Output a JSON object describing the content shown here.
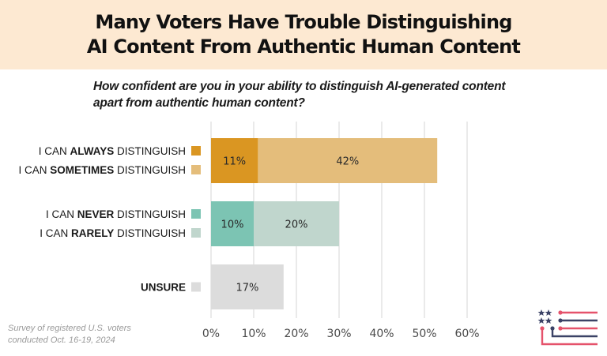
{
  "header": {
    "title_line1": "Many Voters Have Trouble Distinguishing",
    "title_line2": "AI Content From Authentic Human Content"
  },
  "question": {
    "line1": "How confident are you in your ability to distinguish AI-generated content",
    "line2": "apart from authentic human content?"
  },
  "footnote": {
    "line1": "Survey of registered U.S. voters",
    "line2": "conducted Oct. 16-19, 2024"
  },
  "logo": {
    "icon": "flag-stars-stripes-logo"
  },
  "chart_data": {
    "type": "bar",
    "orientation": "horizontal",
    "stacked": true,
    "title": "Many Voters Have Trouble Distinguishing AI Content From Authentic Human Content",
    "subtitle": "How confident are you in your ability to distinguish AI-generated content apart from authentic human content?",
    "xlabel": "",
    "ylabel": "",
    "xlim": [
      0,
      60
    ],
    "xticks": [
      0,
      10,
      20,
      30,
      40,
      50,
      60
    ],
    "xtick_labels": [
      "0%",
      "10%",
      "20%",
      "30%",
      "40%",
      "50%",
      "60%"
    ],
    "grid": true,
    "legend_placement": "left",
    "bars": [
      {
        "segments": [
          {
            "name": "I CAN ALWAYS DISTINGUISH",
            "prefix": "I CAN ",
            "bold": "ALWAYS",
            "suffix": " DISTINGUISH",
            "value": 11,
            "label": "11%",
            "color": "#da9622"
          },
          {
            "name": "I CAN SOMETIMES DISTINGUISH",
            "prefix": "I CAN ",
            "bold": "SOMETIMES",
            "suffix": " DISTINGUISH",
            "value": 42,
            "label": "42%",
            "color": "#e4bd7b"
          }
        ]
      },
      {
        "segments": [
          {
            "name": "I CAN NEVER DISTINGUISH",
            "prefix": "I CAN ",
            "bold": "NEVER",
            "suffix": " DISTINGUISH",
            "value": 10,
            "label": "10%",
            "color": "#7cc4b3"
          },
          {
            "name": "I CAN RARELY DISTINGUISH",
            "prefix": "I CAN ",
            "bold": "RARELY",
            "suffix": " DISTINGUISH",
            "value": 20,
            "label": "20%",
            "color": "#c0d6cd"
          }
        ]
      },
      {
        "segments": [
          {
            "name": "UNSURE",
            "prefix": "",
            "bold": "UNSURE",
            "suffix": "",
            "value": 17,
            "label": "17%",
            "color": "#dcdcdc"
          }
        ]
      }
    ]
  }
}
